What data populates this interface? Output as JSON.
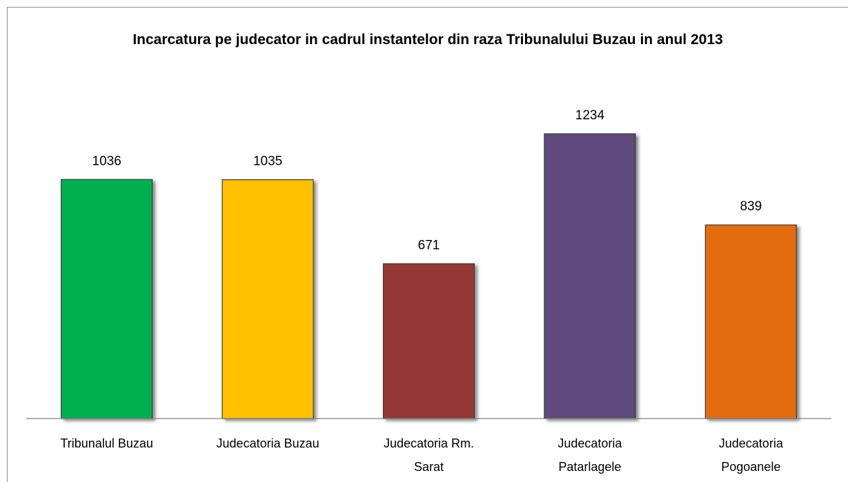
{
  "chart_data": {
    "type": "bar",
    "title": "Incarcatura pe judecator in cadrul  instantelor din raza Tribunalului Buzau in anul 2013",
    "categories": [
      "Tribunalul Buzau",
      "Judecatoria Buzau",
      "Judecatoria Rm. Sarat",
      "Judecatoria Patarlagele",
      "Judecatoria Pogoanele"
    ],
    "values": [
      1036,
      1035,
      671,
      1234,
      839
    ],
    "colors": [
      "#00b050",
      "#ffc000",
      "#953735",
      "#604a7b",
      "#e46c0a"
    ]
  }
}
